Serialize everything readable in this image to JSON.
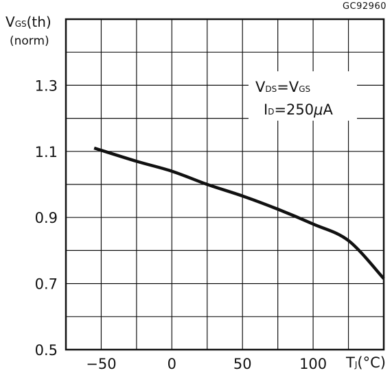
{
  "figure_code": "GC92960",
  "y_axis_label": "V GS(th)",
  "y_axis_label_sub": "(norm)",
  "x_axis_unit": "TJ(°C)",
  "conditions": [
    "VDS=VGS",
    "ID=250μA"
  ],
  "chart_data": {
    "type": "line",
    "title": "",
    "xlabel": "TJ(°C)",
    "ylabel": "VGS(th) (norm)",
    "xlim": [
      -75,
      150
    ],
    "ylim": [
      0.5,
      1.5
    ],
    "x_ticks": [
      -50,
      0,
      50,
      100
    ],
    "x_tick_labels": [
      "-50",
      "0",
      "50",
      "100"
    ],
    "y_ticks": [
      0.5,
      0.7,
      0.9,
      1.1,
      1.3
    ],
    "y_tick_labels": [
      "0.5",
      "0.7",
      "0.9",
      "1.1",
      "1.3"
    ],
    "grid": true,
    "series": [
      {
        "x": [
          -55,
          -25,
          0,
          25,
          50,
          75,
          100,
          125,
          150
        ],
        "y": [
          1.11,
          1.07,
          1.04,
          1.0,
          0.965,
          0.925,
          0.88,
          0.83,
          0.715
        ]
      }
    ]
  }
}
